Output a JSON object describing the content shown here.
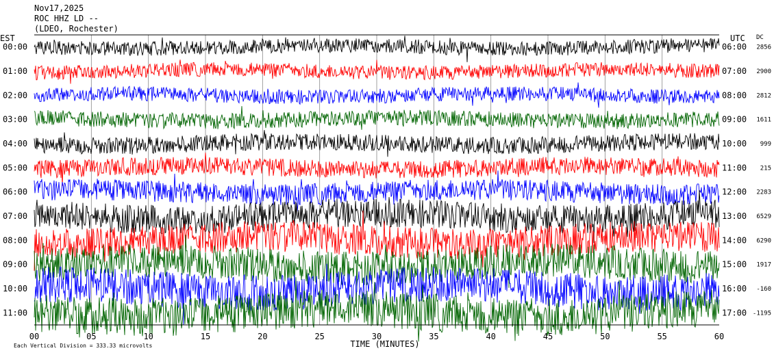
{
  "header": {
    "date": "Nov17,2025",
    "station": "ROC HHZ LD --",
    "network": "(LDEO, Rochester)"
  },
  "left_axis_title": "EST",
  "right_axis_title": "UTC",
  "dc_header": "DC",
  "footer": {
    "vertical_division": "Each Vertical Division =  333.33 microvolts"
  },
  "chart_data": {
    "type": "line",
    "title": "ROC HHZ LD --",
    "xlabel": "TIME (MINUTES)",
    "xlim": [
      0,
      60
    ],
    "x_ticks": [
      "00",
      "05",
      "10",
      "15",
      "20",
      "25",
      "30",
      "35",
      "40",
      "45",
      "50",
      "55",
      "60"
    ],
    "vertical_gridlines_every_minutes": 5,
    "series": [
      {
        "est": "00:00",
        "utc": "06:00",
        "dc": "2856",
        "color": "#000000",
        "amplitude": 0.6
      },
      {
        "est": "01:00",
        "utc": "07:00",
        "dc": "2900",
        "color": "#ff0000",
        "amplitude": 0.6
      },
      {
        "est": "02:00",
        "utc": "08:00",
        "dc": "2812",
        "color": "#0000ff",
        "amplitude": 0.6
      },
      {
        "est": "03:00",
        "utc": "09:00",
        "dc": "1611",
        "color": "#006400",
        "amplitude": 0.65
      },
      {
        "est": "04:00",
        "utc": "10:00",
        "dc": "999",
        "color": "#000000",
        "amplitude": 0.7
      },
      {
        "est": "05:00",
        "utc": "11:00",
        "dc": "215",
        "color": "#ff0000",
        "amplitude": 0.75
      },
      {
        "est": "06:00",
        "utc": "12:00",
        "dc": "2283",
        "color": "#0000ff",
        "amplitude": 0.9
      },
      {
        "est": "07:00",
        "utc": "13:00",
        "dc": "6529",
        "color": "#000000",
        "amplitude": 1.2
      },
      {
        "est": "08:00",
        "utc": "14:00",
        "dc": "6290",
        "color": "#ff0000",
        "amplitude": 1.3
      },
      {
        "est": "09:00",
        "utc": "15:00",
        "dc": "1917",
        "color": "#006400",
        "amplitude": 1.4
      },
      {
        "est": "10:00",
        "utc": "16:00",
        "dc": "-160",
        "color": "#0000ff",
        "amplitude": 1.5
      },
      {
        "est": "11:00",
        "utc": "17:00",
        "dc": "-1195",
        "color": "#006400",
        "amplitude": 1.6
      }
    ]
  }
}
